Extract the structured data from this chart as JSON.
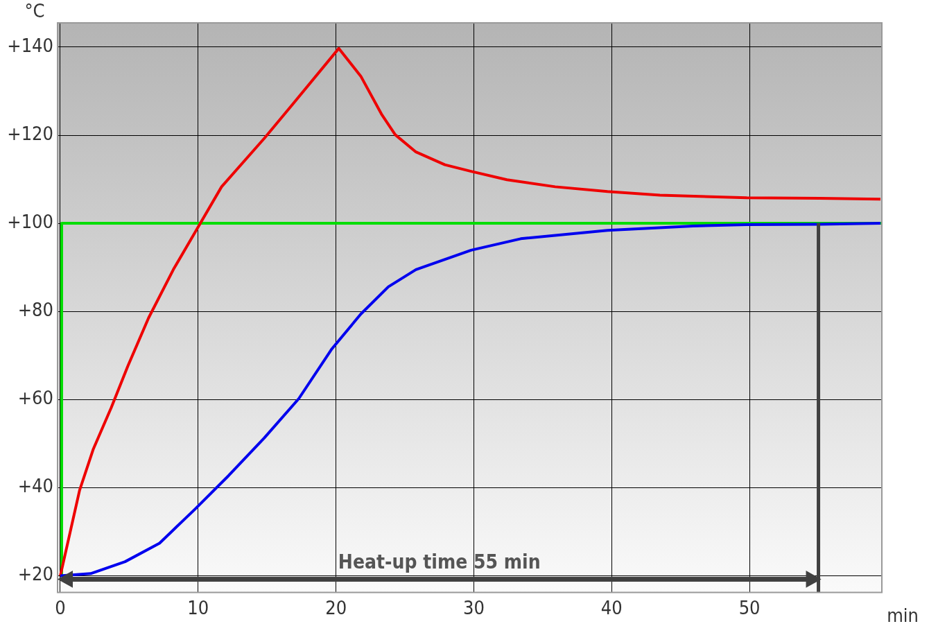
{
  "chart_data": {
    "type": "line",
    "xlabel": "min",
    "ylabel": "°C",
    "xlim": [
      -0.2,
      59.6
    ],
    "xticks": [
      0,
      10,
      20,
      30,
      40,
      50
    ],
    "ylim": [
      16.2,
      145.5
    ],
    "yticks": [
      {
        "value": 20,
        "label": "+20"
      },
      {
        "value": 40,
        "label": "+40"
      },
      {
        "value": 60,
        "label": "+60"
      },
      {
        "value": 80,
        "label": "+80"
      },
      {
        "value": 100,
        "label": "+100"
      },
      {
        "value": 120,
        "label": "+120"
      },
      {
        "value": 140,
        "label": "+140"
      }
    ],
    "grid": true,
    "legend": false,
    "marker": "none",
    "line_style": "solid",
    "series": [
      {
        "type": "step",
        "color": "#00dd00",
        "x": [
          0.1,
          0.1,
          59.6
        ],
        "values": [
          20,
          100,
          100
        ]
      },
      {
        "color": "#ee0000",
        "x": [
          0,
          1.4,
          2.4,
          3.7,
          4.9,
          6.4,
          8.2,
          9.8,
          11.7,
          14.8,
          16.8,
          20.2,
          21.8,
          23.3,
          24.3,
          25.8,
          27.9,
          29.8,
          32.4,
          35.9,
          39.7,
          43.5,
          49.8,
          55.1,
          59.5
        ],
        "values": [
          20,
          39.4,
          48.8,
          58.2,
          67.6,
          78.5,
          89.5,
          98.1,
          108.3,
          119.3,
          126.8,
          139.7,
          133.4,
          124.8,
          120.1,
          116.2,
          113.3,
          111.8,
          109.9,
          108.3,
          107.2,
          106.4,
          105.8,
          105.7,
          105.5
        ]
      },
      {
        "color": "#0000ee",
        "x": [
          0,
          2.2,
          4.7,
          7.2,
          9.8,
          12.2,
          14.8,
          17.3,
          19.7,
          21.8,
          23.8,
          25.8,
          29.8,
          33.4,
          39.7,
          45.9,
          49.8,
          55.1,
          59.5
        ],
        "values": [
          20,
          20.5,
          23.2,
          27.4,
          35.2,
          42.7,
          51.3,
          60.2,
          71.5,
          79.4,
          85.6,
          89.5,
          93.9,
          96.5,
          98.4,
          99.4,
          99.7,
          99.8,
          100
        ]
      }
    ],
    "ref_lines": [
      {
        "axis": "x",
        "value": 55,
        "color": "#404040"
      }
    ],
    "annotations": [
      "Heat-up time 55 min"
    ]
  }
}
